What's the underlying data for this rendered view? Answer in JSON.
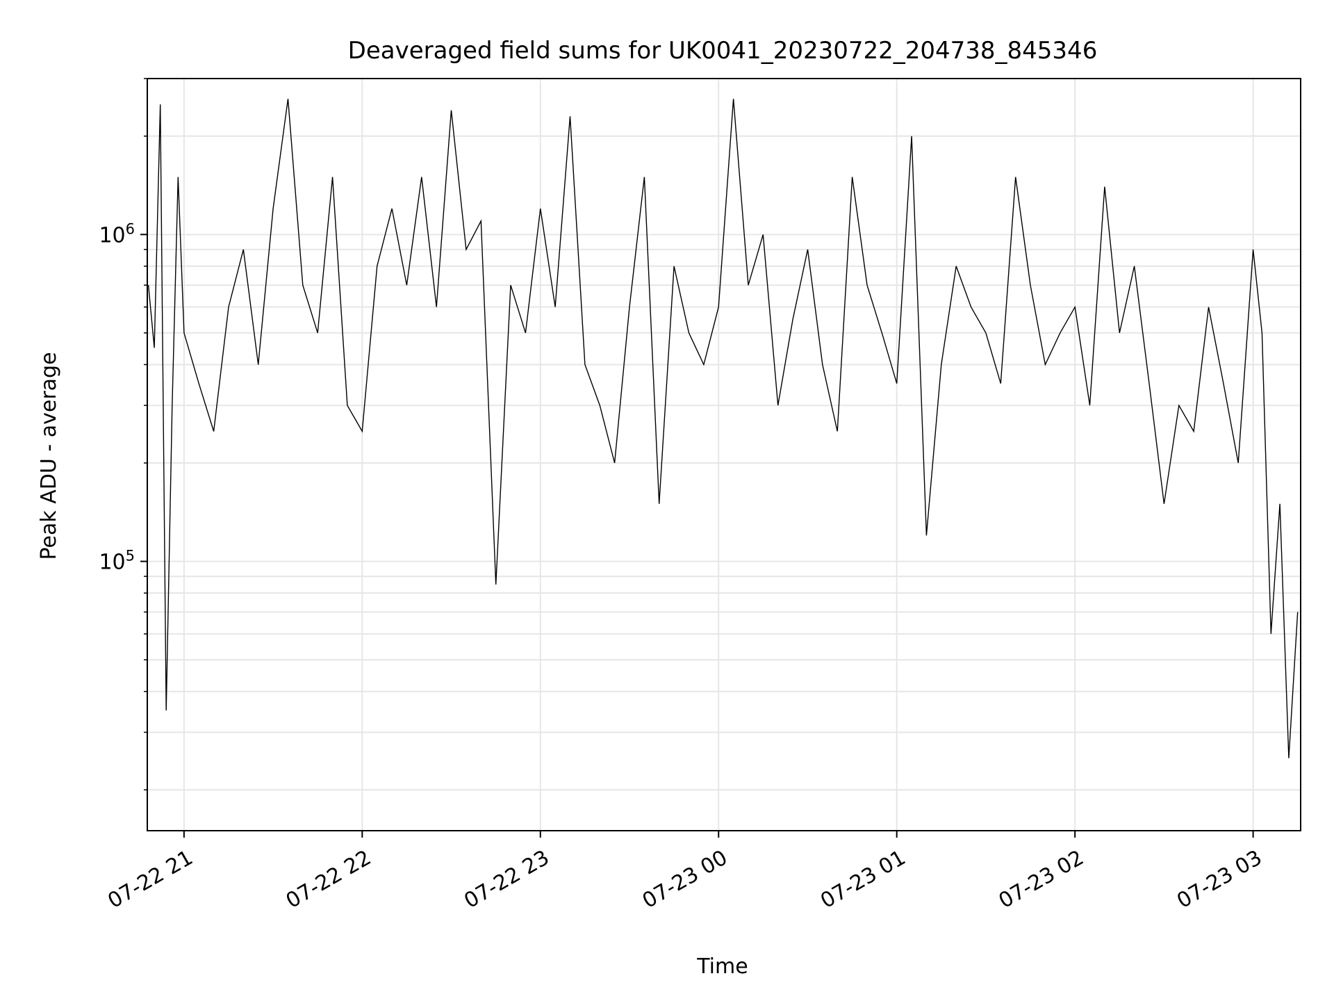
{
  "chart_data": {
    "type": "line",
    "title": "Deaveraged field sums for UK0041_20230722_204738_845346",
    "xlabel": "Time",
    "ylabel": "Peak ADU - average",
    "y_scale": "log",
    "ylim": [
      15000,
      3000000
    ],
    "xlim": [
      "2023-07-22 20:47:38",
      "2023-07-23 03:16:00"
    ],
    "grid": true,
    "line_color": "#000000",
    "x_ticks": [
      {
        "t": "2023-07-22 21:00",
        "label": "07-22 21"
      },
      {
        "t": "2023-07-22 22:00",
        "label": "07-22 22"
      },
      {
        "t": "2023-07-22 23:00",
        "label": "07-22 23"
      },
      {
        "t": "2023-07-23 00:00",
        "label": "07-23 00"
      },
      {
        "t": "2023-07-23 01:00",
        "label": "07-23 01"
      },
      {
        "t": "2023-07-23 02:00",
        "label": "07-23 02"
      },
      {
        "t": "2023-07-23 03:00",
        "label": "07-23 03"
      }
    ],
    "y_ticks": [
      {
        "value": 100000,
        "base": "10",
        "exp": "5"
      },
      {
        "value": 1000000,
        "base": "10",
        "exp": "6"
      }
    ],
    "series": [
      {
        "x": [
          "2023-07-22 20:48",
          "2023-07-22 20:50",
          "2023-07-22 20:52",
          "2023-07-22 20:54",
          "2023-07-22 20:56",
          "2023-07-22 20:58",
          "2023-07-22 21:00",
          "2023-07-22 21:05",
          "2023-07-22 21:10",
          "2023-07-22 21:15",
          "2023-07-22 21:20",
          "2023-07-22 21:25",
          "2023-07-22 21:30",
          "2023-07-22 21:35",
          "2023-07-22 21:40",
          "2023-07-22 21:45",
          "2023-07-22 21:50",
          "2023-07-22 21:55",
          "2023-07-22 22:00",
          "2023-07-22 22:05",
          "2023-07-22 22:10",
          "2023-07-22 22:15",
          "2023-07-22 22:20",
          "2023-07-22 22:25",
          "2023-07-22 22:30",
          "2023-07-22 22:35",
          "2023-07-22 22:40",
          "2023-07-22 22:45",
          "2023-07-22 22:50",
          "2023-07-22 22:55",
          "2023-07-22 23:00",
          "2023-07-22 23:05",
          "2023-07-22 23:10",
          "2023-07-22 23:15",
          "2023-07-22 23:20",
          "2023-07-22 23:25",
          "2023-07-22 23:30",
          "2023-07-22 23:35",
          "2023-07-22 23:40",
          "2023-07-22 23:45",
          "2023-07-22 23:50",
          "2023-07-22 23:55",
          "2023-07-23 00:00",
          "2023-07-23 00:05",
          "2023-07-23 00:10",
          "2023-07-23 00:15",
          "2023-07-23 00:20",
          "2023-07-23 00:25",
          "2023-07-23 00:30",
          "2023-07-23 00:35",
          "2023-07-23 00:40",
          "2023-07-23 00:45",
          "2023-07-23 00:50",
          "2023-07-23 00:55",
          "2023-07-23 01:00",
          "2023-07-23 01:05",
          "2023-07-23 01:10",
          "2023-07-23 01:15",
          "2023-07-23 01:20",
          "2023-07-23 01:25",
          "2023-07-23 01:30",
          "2023-07-23 01:35",
          "2023-07-23 01:40",
          "2023-07-23 01:45",
          "2023-07-23 01:50",
          "2023-07-23 01:55",
          "2023-07-23 02:00",
          "2023-07-23 02:05",
          "2023-07-23 02:10",
          "2023-07-23 02:15",
          "2023-07-23 02:20",
          "2023-07-23 02:25",
          "2023-07-23 02:30",
          "2023-07-23 02:35",
          "2023-07-23 02:40",
          "2023-07-23 02:45",
          "2023-07-23 02:50",
          "2023-07-23 02:55",
          "2023-07-23 03:00",
          "2023-07-23 03:03",
          "2023-07-23 03:06",
          "2023-07-23 03:09",
          "2023-07-23 03:12",
          "2023-07-23 03:15"
        ],
        "y": [
          700000,
          450000,
          2500000,
          35000,
          300000,
          1500000,
          500000,
          350000,
          250000,
          600000,
          900000,
          400000,
          1200000,
          2600000,
          700000,
          500000,
          1500000,
          300000,
          250000,
          800000,
          1200000,
          700000,
          1500000,
          600000,
          2400000,
          900000,
          1100000,
          85000,
          700000,
          500000,
          1200000,
          600000,
          2300000,
          400000,
          300000,
          200000,
          600000,
          1500000,
          150000,
          800000,
          500000,
          400000,
          600000,
          2600000,
          700000,
          1000000,
          300000,
          550000,
          900000,
          400000,
          250000,
          1500000,
          700000,
          500000,
          350000,
          2000000,
          120000,
          400000,
          800000,
          600000,
          500000,
          350000,
          1500000,
          700000,
          400000,
          500000,
          600000,
          300000,
          1400000,
          500000,
          800000,
          350000,
          150000,
          300000,
          250000,
          600000,
          350000,
          200000,
          900000,
          500000,
          60000,
          150000,
          25000,
          70000
        ]
      }
    ]
  }
}
